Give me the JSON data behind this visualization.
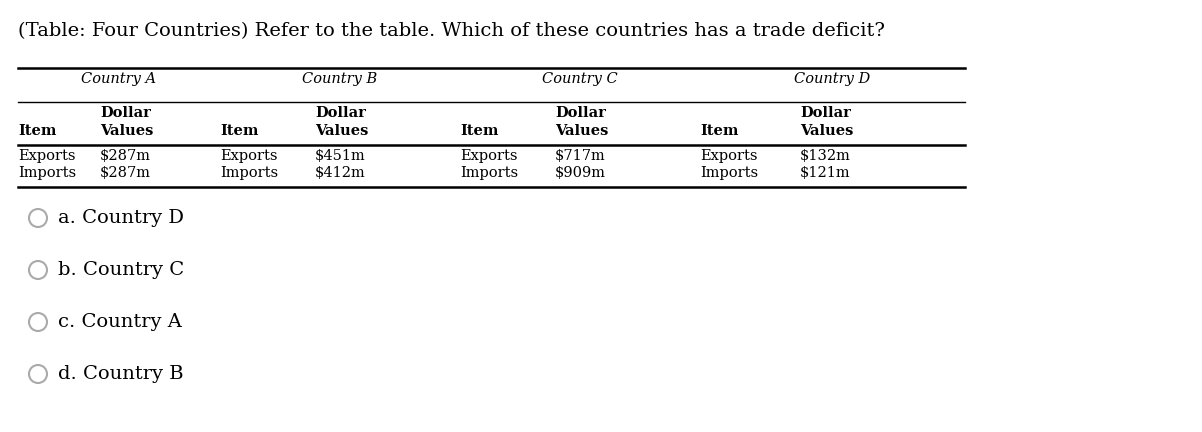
{
  "title": "(Table: Four Countries) Refer to the table. Which of these countries has a trade deficit?",
  "title_fontsize": 14,
  "background_color": "#ffffff",
  "table": {
    "country_headers": [
      "Country A",
      "Country B",
      "Country C",
      "Country D"
    ],
    "dollar_labels": [
      "Dollar",
      "Dollar",
      "Dollar",
      "Dollar"
    ],
    "col_headers": [
      "Item",
      "Values",
      "Item",
      "Values",
      "Item",
      "Values",
      "Item",
      "Values"
    ],
    "row_exports": [
      "Exports",
      "$287m",
      "Exports",
      "$451m",
      "Exports",
      "$717m",
      "Exports",
      "$132m"
    ],
    "row_imports": [
      "Imports",
      "$287m",
      "Imports",
      "$412m",
      "Imports",
      "$909m",
      "Imports",
      "$121m"
    ]
  },
  "choices": [
    "a. Country D",
    "b. Country C",
    "c. Country A",
    "d. Country B"
  ],
  "font_family": "DejaVu Serif",
  "table_font_size": 10.5,
  "choices_font_size": 14
}
